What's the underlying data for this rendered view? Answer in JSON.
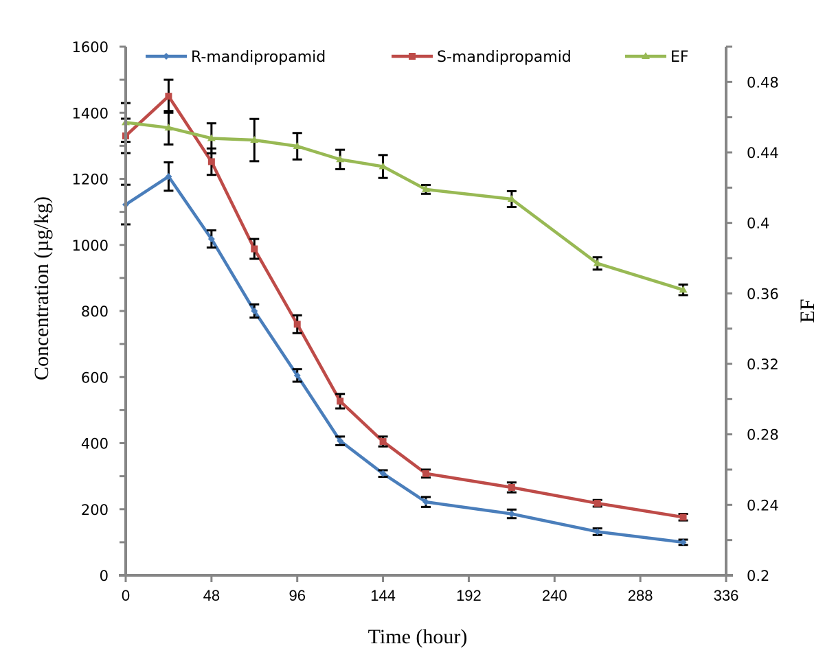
{
  "chart_data": {
    "type": "line",
    "title": "",
    "xlabel": "Time (hour)",
    "ylabel": "Concentration (µg/kg)",
    "y2label": "EF",
    "xlim": [
      0,
      336
    ],
    "ylim": [
      0,
      1600
    ],
    "y2lim": [
      0.2,
      0.5
    ],
    "x_ticks": [
      0,
      48,
      96,
      144,
      192,
      240,
      288,
      336
    ],
    "x_tick_labels": [
      "0",
      "48",
      "96",
      "144",
      "192",
      "240",
      "288",
      "336"
    ],
    "y_ticks": [
      0,
      200,
      400,
      600,
      800,
      1000,
      1200,
      1400,
      1600
    ],
    "y_tick_labels": [
      "0",
      "200",
      "400",
      "600",
      "800",
      "1000",
      "1200",
      "1400",
      "1600"
    ],
    "y_minor_step": 100,
    "y2_ticks": [
      0.2,
      0.24,
      0.28,
      0.32,
      0.36,
      0.4,
      0.44,
      0.48
    ],
    "y2_tick_labels": [
      "0.2",
      "0.24",
      "0.28",
      "0.32",
      "0.36",
      "0.4",
      "0.44",
      "0.48"
    ],
    "y2_minor_step": 0.02,
    "grid": false,
    "legend_position": "top",
    "x": [
      0,
      24,
      48,
      72,
      96,
      120,
      144,
      168,
      216,
      264,
      312
    ],
    "series": [
      {
        "name": "R-mandipropamid",
        "axis": "left",
        "color": "#4a7ebb",
        "marker": "diamond",
        "values": [
          1122,
          1207,
          1018,
          800,
          605,
          407,
          308,
          222,
          186,
          132,
          100
        ],
        "errors": [
          60,
          43,
          26,
          20,
          19,
          13,
          10,
          15,
          13,
          10,
          8
        ]
      },
      {
        "name": "S-mandipropamid",
        "axis": "left",
        "color": "#be4b48",
        "marker": "square",
        "values": [
          1330,
          1450,
          1252,
          988,
          760,
          527,
          405,
          308,
          266,
          218,
          176
        ],
        "errors": [
          52,
          50,
          40,
          30,
          27,
          22,
          15,
          12,
          15,
          10,
          10
        ]
      },
      {
        "name": "EF",
        "axis": "right",
        "color": "#98b954",
        "marker": "triangle",
        "values": [
          0.457,
          0.454,
          0.448,
          0.447,
          0.4435,
          0.436,
          0.432,
          0.419,
          0.4135,
          0.377,
          0.362
        ],
        "errors": [
          0.011,
          0.0095,
          0.0085,
          0.012,
          0.0075,
          0.0055,
          0.0065,
          0.0025,
          0.0045,
          0.0035,
          0.003
        ]
      }
    ],
    "axis_color": "#868686",
    "error_bar_color": "#000000"
  }
}
